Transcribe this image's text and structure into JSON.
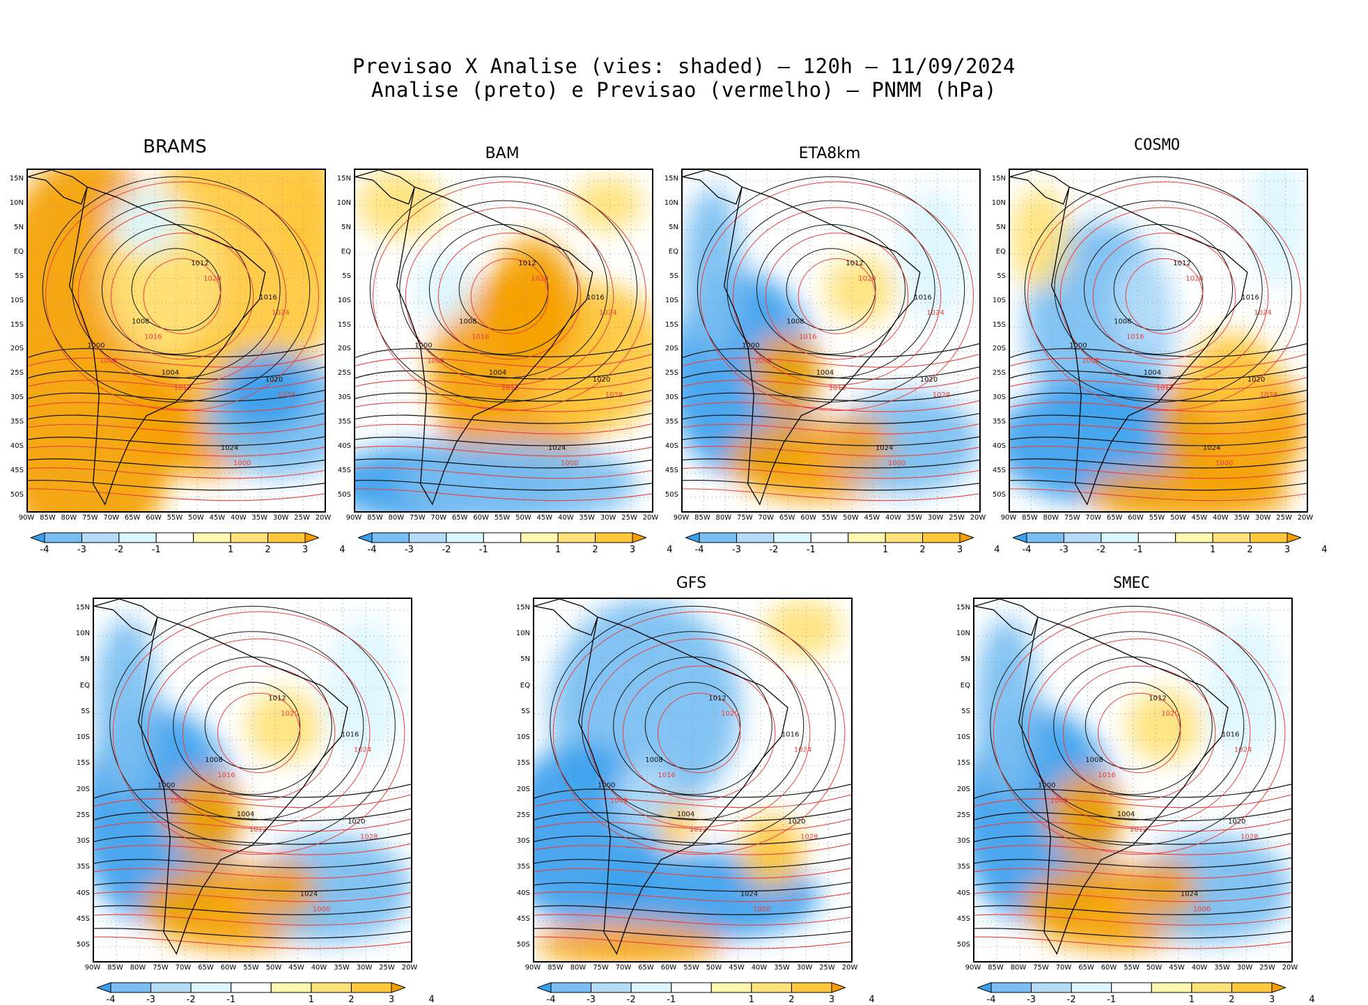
{
  "title": {
    "line1": "Previsao X Analise (vies: shaded) – 120h – 11/09/2024",
    "line2": "Analise (preto) e Previsao (vermelho) – PNMM (hPa)"
  },
  "axes": {
    "lat_ticks": [
      "15N",
      "10N",
      "5N",
      "EQ",
      "5S",
      "10S",
      "15S",
      "20S",
      "25S",
      "30S",
      "35S",
      "40S",
      "45S",
      "50S"
    ],
    "lon_ticks": [
      "90W",
      "85W",
      "80W",
      "75W",
      "70W",
      "65W",
      "60W",
      "55W",
      "50W",
      "45W",
      "40W",
      "35W",
      "30W",
      "25W",
      "20W"
    ]
  },
  "colorbar": {
    "ticks": [
      "-4",
      "-3",
      "-2",
      "-1",
      "1",
      "2",
      "3",
      "4"
    ],
    "colors": [
      "#3aa0ee",
      "#78bef2",
      "#b4dcf8",
      "#dcf6ff",
      "#ffffff",
      "#fff6b0",
      "#ffe27a",
      "#ffc83c",
      "#f5a000"
    ]
  },
  "panels": [
    {
      "label": "BRAMS",
      "bias": "warm"
    },
    {
      "label": "BAM",
      "bias": "mixed_warm"
    },
    {
      "label": "ETA8km",
      "bias": "mixed"
    },
    {
      "label": "COSMO",
      "bias": "mixed_cold"
    },
    {
      "label": "",
      "bias": "mixed"
    },
    {
      "label": "GFS",
      "bias": "cold"
    },
    {
      "label": "SMEC",
      "bias": "mixed"
    }
  ],
  "isobars": {
    "analysis": [
      "1000",
      "1004",
      "1008",
      "1012",
      "1016",
      "1020",
      "1024"
    ],
    "forecast": [
      "1000",
      "1004",
      "1008",
      "1012",
      "1016",
      "1020",
      "1024",
      "1028"
    ]
  }
}
